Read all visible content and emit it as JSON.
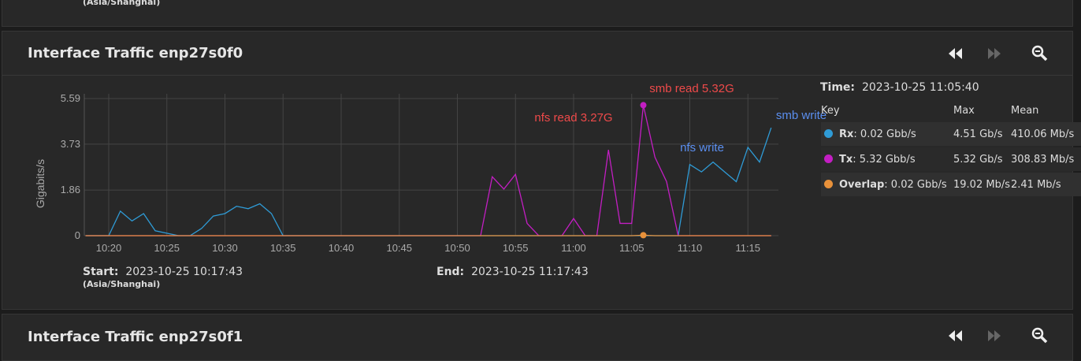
{
  "top_panel": {
    "timezone": "(Asia/Shanghai)"
  },
  "panel": {
    "title": "Interface Traffic enp27s0f0",
    "start_label": "Start:",
    "start": "2023-10-25 10:17:43",
    "timezone": "(Asia/Shanghai)",
    "end_label": "End:",
    "end": "2023-10-25 11:17:43"
  },
  "chart_data": {
    "type": "line",
    "y_label": "Gigabits/s",
    "x": [
      "10:18",
      "10:19",
      "10:20",
      "10:21",
      "10:22",
      "10:23",
      "10:24",
      "10:25",
      "10:26",
      "10:27",
      "10:28",
      "10:29",
      "10:30",
      "10:31",
      "10:32",
      "10:33",
      "10:34",
      "10:35",
      "10:36",
      "10:37",
      "10:38",
      "10:39",
      "10:40",
      "10:41",
      "10:42",
      "10:43",
      "10:44",
      "10:45",
      "10:46",
      "10:47",
      "10:48",
      "10:49",
      "10:50",
      "10:51",
      "10:52",
      "10:53",
      "10:54",
      "10:55",
      "10:56",
      "10:57",
      "10:58",
      "10:59",
      "11:00",
      "11:01",
      "11:02",
      "11:03",
      "11:04",
      "11:05",
      "11:06",
      "11:07",
      "11:08",
      "11:09",
      "11:10",
      "11:11",
      "11:12",
      "11:13",
      "11:14",
      "11:15",
      "11:16",
      "11:17"
    ],
    "xticks": [
      "10:20",
      "10:25",
      "10:30",
      "10:35",
      "10:40",
      "10:45",
      "10:50",
      "10:55",
      "11:00",
      "11:05",
      "11:10",
      "11:15"
    ],
    "ylim": [
      0,
      5.59
    ],
    "yticks": [
      0,
      1.86,
      3.73,
      5.59
    ],
    "grid": true,
    "series": [
      {
        "name": "Rx",
        "color": "#2f9bd6",
        "values": [
          0,
          0,
          0,
          1.0,
          0.6,
          0.9,
          0.2,
          0.1,
          0,
          0,
          0.3,
          0.8,
          0.9,
          1.2,
          1.1,
          1.3,
          0.9,
          0,
          0,
          0,
          0,
          0,
          0,
          0,
          0,
          0,
          0,
          0,
          0,
          0,
          0,
          0,
          0,
          0,
          0,
          0,
          0,
          0,
          0,
          0,
          0,
          0,
          0,
          0,
          0,
          0,
          0,
          0,
          0,
          0,
          0,
          0,
          2.9,
          2.6,
          3.0,
          2.6,
          2.2,
          3.6,
          3.0,
          4.4
        ]
      },
      {
        "name": "Tx",
        "color": "#c31ec3",
        "values": [
          0,
          0,
          0,
          0,
          0,
          0,
          0,
          0,
          0,
          0,
          0,
          0,
          0,
          0,
          0,
          0,
          0,
          0,
          0,
          0,
          0,
          0,
          0,
          0,
          0,
          0,
          0,
          0,
          0,
          0,
          0,
          0,
          0,
          0,
          0,
          2.4,
          1.9,
          2.5,
          0.5,
          0,
          0,
          0,
          0.7,
          0,
          0,
          3.5,
          0.5,
          0.5,
          5.32,
          3.2,
          2.2,
          0,
          0,
          0,
          0,
          0,
          0,
          0,
          0,
          0
        ]
      },
      {
        "name": "Overlap",
        "color": "#e8913a",
        "values": [
          0,
          0,
          0,
          0,
          0,
          0,
          0,
          0,
          0,
          0,
          0,
          0,
          0,
          0,
          0,
          0,
          0,
          0,
          0,
          0,
          0,
          0,
          0,
          0,
          0,
          0,
          0,
          0,
          0,
          0,
          0,
          0,
          0,
          0,
          0,
          0,
          0,
          0,
          0,
          0,
          0,
          0,
          0,
          0,
          0,
          0,
          0,
          0,
          0.02,
          0,
          0,
          0,
          0,
          0,
          0,
          0,
          0,
          0,
          0,
          0
        ]
      }
    ],
    "annotations": [
      {
        "text": "smb read 5.32G",
        "color": "#ef4a4a"
      },
      {
        "text": "nfs read 3.27G",
        "color": "#ef4a4a"
      },
      {
        "text": "nfs write",
        "color": "#5b8ff0"
      },
      {
        "text": "smb write",
        "color": "#5b8ff0"
      }
    ]
  },
  "legend": {
    "time_label": "Time:",
    "time": "2023-10-25 11:05:40",
    "headers": [
      "Key",
      "Max",
      "Mean"
    ],
    "rows": [
      {
        "name": "Rx",
        "reading": ": 0.02 Gbb/s",
        "max": "4.51 Gb/s",
        "mean": "410.06 Mb/s"
      },
      {
        "name": "Tx",
        "reading": ": 5.32 Gbb/s",
        "max": "5.32 Gb/s",
        "mean": "308.83 Mb/s"
      },
      {
        "name": "Overlap",
        "reading": ": 0.02 Gbb/s",
        "max": "19.02 Mb/s",
        "mean": "2.41 Mb/s"
      }
    ]
  },
  "next_panel": {
    "title": "Interface Traffic enp27s0f1"
  }
}
